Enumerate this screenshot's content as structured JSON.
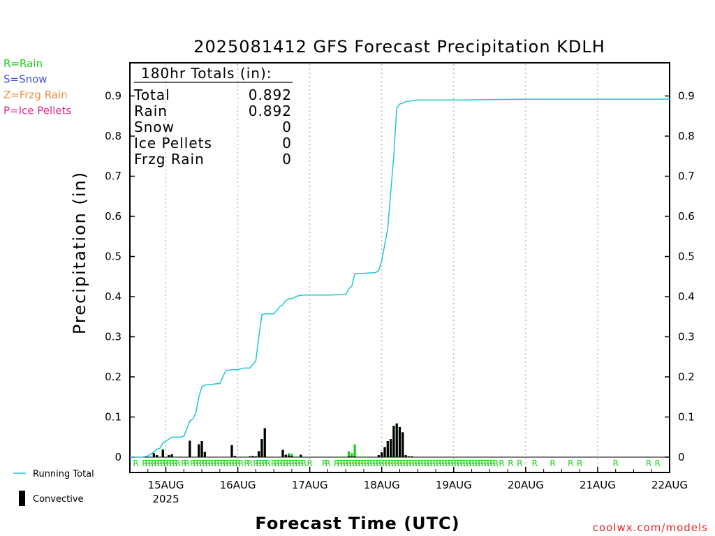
{
  "chart_data": {
    "type": "bar",
    "title": "2025081412 GFS Forecast Precipitation KDLH",
    "ylabel": "Precipitation (in)",
    "xlabel": "Forecast Time (UTC)",
    "ylim": [
      0,
      0.98
    ],
    "xlim_hours": [
      0,
      180
    ],
    "grid_y": false,
    "grid_x": "dotted at day boundaries",
    "yticks": [
      "0",
      "0.1",
      "0.2",
      "0.3",
      "0.4",
      "0.5",
      "0.6",
      "0.7",
      "0.8",
      "0.9"
    ],
    "xticks": [
      {
        "hour": 12,
        "label": "15AUG",
        "sublabel": "2025"
      },
      {
        "hour": 36,
        "label": "16AUG",
        "sublabel": ""
      },
      {
        "hour": 60,
        "label": "17AUG",
        "sublabel": ""
      },
      {
        "hour": 84,
        "label": "18AUG",
        "sublabel": ""
      },
      {
        "hour": 108,
        "label": "19AUG",
        "sublabel": ""
      },
      {
        "hour": 132,
        "label": "20AUG",
        "sublabel": ""
      },
      {
        "hour": 156,
        "label": "21AUG",
        "sublabel": ""
      },
      {
        "hour": 180,
        "label": "22AUG",
        "sublabel": ""
      }
    ],
    "type_legend": [
      {
        "label": "R=Rain",
        "color": "#17d017"
      },
      {
        "label": "S=Snow",
        "color": "#3b50e8"
      },
      {
        "label": "Z=Frzg Rain",
        "color": "#f08c3c"
      },
      {
        "label": "P=Ice Pellets",
        "color": "#e8288c"
      }
    ],
    "series_legend": [
      {
        "label": "Running Total",
        "color": "#1ec8d2",
        "kind": "line"
      },
      {
        "label": "Convective",
        "color": "#000000",
        "kind": "bar"
      }
    ],
    "totals": {
      "header": "180hr Totals (in):",
      "rows": [
        {
          "label": "Total",
          "value": "0.892"
        },
        {
          "label": "Rain",
          "value": "0.892"
        },
        {
          "label": "Snow",
          "value": "0"
        },
        {
          "label": "Ice Pellets",
          "value": "0"
        },
        {
          "label": "Frzg Rain",
          "value": "0"
        }
      ]
    },
    "bar_interval_hours": 1,
    "precip_bars": [
      {
        "hour": 8,
        "total": 0.01,
        "convective": 0.01
      },
      {
        "hour": 9,
        "total": 0.005,
        "convective": 0.005
      },
      {
        "hour": 11,
        "total": 0.02,
        "convective": 0.018
      },
      {
        "hour": 13,
        "total": 0.005,
        "convective": 0.005
      },
      {
        "hour": 14,
        "total": 0.007,
        "convective": 0.007
      },
      {
        "hour": 20,
        "total": 0.041,
        "convective": 0.041
      },
      {
        "hour": 23,
        "total": 0.032,
        "convective": 0.032
      },
      {
        "hour": 24,
        "total": 0.04,
        "convective": 0.04
      },
      {
        "hour": 25,
        "total": 0.013,
        "convective": 0.013
      },
      {
        "hour": 34,
        "total": 0.03,
        "convective": 0.03
      },
      {
        "hour": 35,
        "total": 0.003,
        "convective": 0.003
      },
      {
        "hour": 40,
        "total": 0.002,
        "convective": 0.002
      },
      {
        "hour": 41,
        "total": 0.003,
        "convective": 0.003
      },
      {
        "hour": 42,
        "total": 0.002,
        "convective": 0.002
      },
      {
        "hour": 43,
        "total": 0.015,
        "convective": 0.015
      },
      {
        "hour": 44,
        "total": 0.045,
        "convective": 0.045
      },
      {
        "hour": 45,
        "total": 0.072,
        "convective": 0.072
      },
      {
        "hour": 51,
        "total": 0.018,
        "convective": 0.018
      },
      {
        "hour": 52,
        "total": 0.006,
        "convective": 0.006
      },
      {
        "hour": 53,
        "total": 0.01,
        "convective": 0.004
      },
      {
        "hour": 54,
        "total": 0.008,
        "convective": 0.003
      },
      {
        "hour": 57,
        "total": 0.006,
        "convective": 0.006
      },
      {
        "hour": 73,
        "total": 0.015,
        "convective": 0.002
      },
      {
        "hour": 74,
        "total": 0.01,
        "convective": 0.002
      },
      {
        "hour": 75,
        "total": 0.032,
        "convective": 0.002
      },
      {
        "hour": 83,
        "total": 0.005,
        "convective": 0.005
      },
      {
        "hour": 84,
        "total": 0.012,
        "convective": 0.012
      },
      {
        "hour": 85,
        "total": 0.025,
        "convective": 0.025
      },
      {
        "hour": 86,
        "total": 0.04,
        "convective": 0.04
      },
      {
        "hour": 87,
        "total": 0.045,
        "convective": 0.045
      },
      {
        "hour": 88,
        "total": 0.078,
        "convective": 0.078
      },
      {
        "hour": 89,
        "total": 0.084,
        "convective": 0.084
      },
      {
        "hour": 90,
        "total": 0.075,
        "convective": 0.075
      },
      {
        "hour": 91,
        "total": 0.062,
        "convective": 0.062
      },
      {
        "hour": 92,
        "total": 0.005,
        "convective": 0.005
      },
      {
        "hour": 93,
        "total": 0.002,
        "convective": 0.002
      },
      {
        "hour": 94,
        "total": 0.002,
        "convective": 0.002
      }
    ],
    "running_total": {
      "name": "Running Total",
      "x": [
        0,
        4,
        6,
        8,
        9,
        10,
        11,
        12,
        13,
        14,
        17,
        18,
        20,
        21,
        22,
        23,
        24,
        25,
        26,
        29,
        30,
        31,
        32,
        34,
        36,
        38,
        40,
        42,
        43,
        44,
        45,
        48,
        50,
        51,
        52,
        53,
        54,
        56,
        58,
        60,
        66,
        72,
        73,
        74,
        75,
        78,
        82,
        83,
        84,
        85,
        86,
        87,
        88,
        89,
        90,
        91,
        92,
        94,
        96,
        110,
        132,
        180
      ],
      "y": [
        0.0,
        0.0,
        0.003,
        0.013,
        0.02,
        0.022,
        0.035,
        0.04,
        0.045,
        0.05,
        0.05,
        0.052,
        0.09,
        0.095,
        0.11,
        0.15,
        0.175,
        0.18,
        0.18,
        0.183,
        0.183,
        0.2,
        0.215,
        0.218,
        0.218,
        0.222,
        0.222,
        0.24,
        0.3,
        0.355,
        0.357,
        0.357,
        0.375,
        0.38,
        0.39,
        0.395,
        0.395,
        0.402,
        0.404,
        0.404,
        0.404,
        0.405,
        0.42,
        0.425,
        0.457,
        0.458,
        0.46,
        0.465,
        0.49,
        0.53,
        0.57,
        0.66,
        0.75,
        0.87,
        0.88,
        0.882,
        0.886,
        0.888,
        0.89,
        0.89,
        0.892,
        0.892
      ]
    },
    "precip_type_markers": {
      "symbol": "R",
      "hours": [
        2,
        5,
        6,
        7,
        8,
        9,
        10,
        11,
        12,
        13,
        14,
        15,
        16,
        18,
        19,
        21,
        22,
        23,
        24,
        25,
        26,
        27,
        28,
        29,
        30,
        31,
        32,
        33,
        34,
        35,
        36,
        37,
        39,
        40,
        42,
        43,
        44,
        45,
        46,
        48,
        49,
        50,
        51,
        52,
        53,
        54,
        55,
        56,
        57,
        58,
        60,
        65,
        66,
        69,
        70,
        71,
        72,
        73,
        74,
        75,
        76,
        77,
        78,
        79,
        80,
        81,
        82,
        83,
        84,
        85,
        86,
        87,
        88,
        89,
        90,
        91,
        92,
        93,
        94,
        95,
        96,
        97,
        98,
        99,
        100,
        101,
        102,
        103,
        104,
        105,
        106,
        107,
        108,
        109,
        110,
        111,
        112,
        113,
        114,
        115,
        116,
        117,
        118,
        119,
        120,
        121,
        122,
        124,
        127,
        130,
        135,
        141,
        147,
        150,
        162,
        173,
        176
      ]
    }
  },
  "credit": "coolwx.com/models"
}
